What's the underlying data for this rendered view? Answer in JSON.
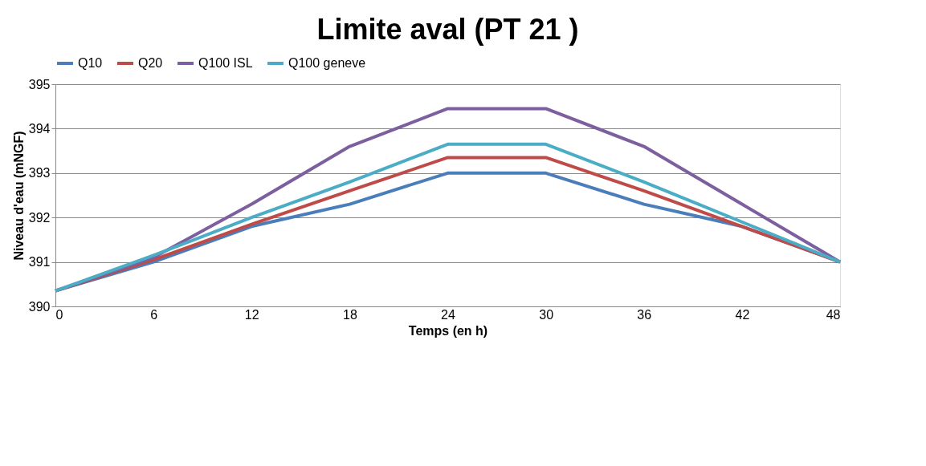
{
  "chart_data": {
    "type": "line",
    "title": "Limite aval (PT 21 )",
    "xlabel": "Temps (en h)",
    "ylabel": "Niveau d'eau (mNGF)",
    "x": [
      0,
      6,
      12,
      18,
      24,
      30,
      36,
      42,
      48
    ],
    "series": [
      {
        "name": "Q10",
        "color": "#4a7ebb",
        "values": [
          390.35,
          391.0,
          391.8,
          392.3,
          393.0,
          393.0,
          392.3,
          391.8,
          391.0
        ]
      },
      {
        "name": "Q20",
        "color": "#be4b48",
        "values": [
          390.35,
          391.05,
          391.85,
          392.6,
          393.35,
          393.35,
          392.6,
          391.8,
          391.0
        ]
      },
      {
        "name": "Q100 ISL",
        "color": "#7d5fa0",
        "values": [
          390.35,
          391.1,
          392.3,
          393.6,
          394.45,
          394.45,
          393.6,
          392.3,
          391.0
        ]
      },
      {
        "name": "Q100 geneve",
        "color": "#4bacc6",
        "values": [
          390.35,
          391.15,
          392.0,
          392.8,
          393.65,
          393.65,
          392.8,
          391.9,
          391.0
        ]
      }
    ],
    "xlim": [
      0,
      48
    ],
    "xticks": [
      0,
      6,
      12,
      18,
      24,
      30,
      36,
      42,
      48
    ],
    "ylim": [
      390,
      395
    ],
    "yticks": [
      390,
      391,
      392,
      393,
      394,
      395
    ],
    "grid": "y",
    "legend": "top",
    "marker": "none",
    "line_style": "solid"
  }
}
